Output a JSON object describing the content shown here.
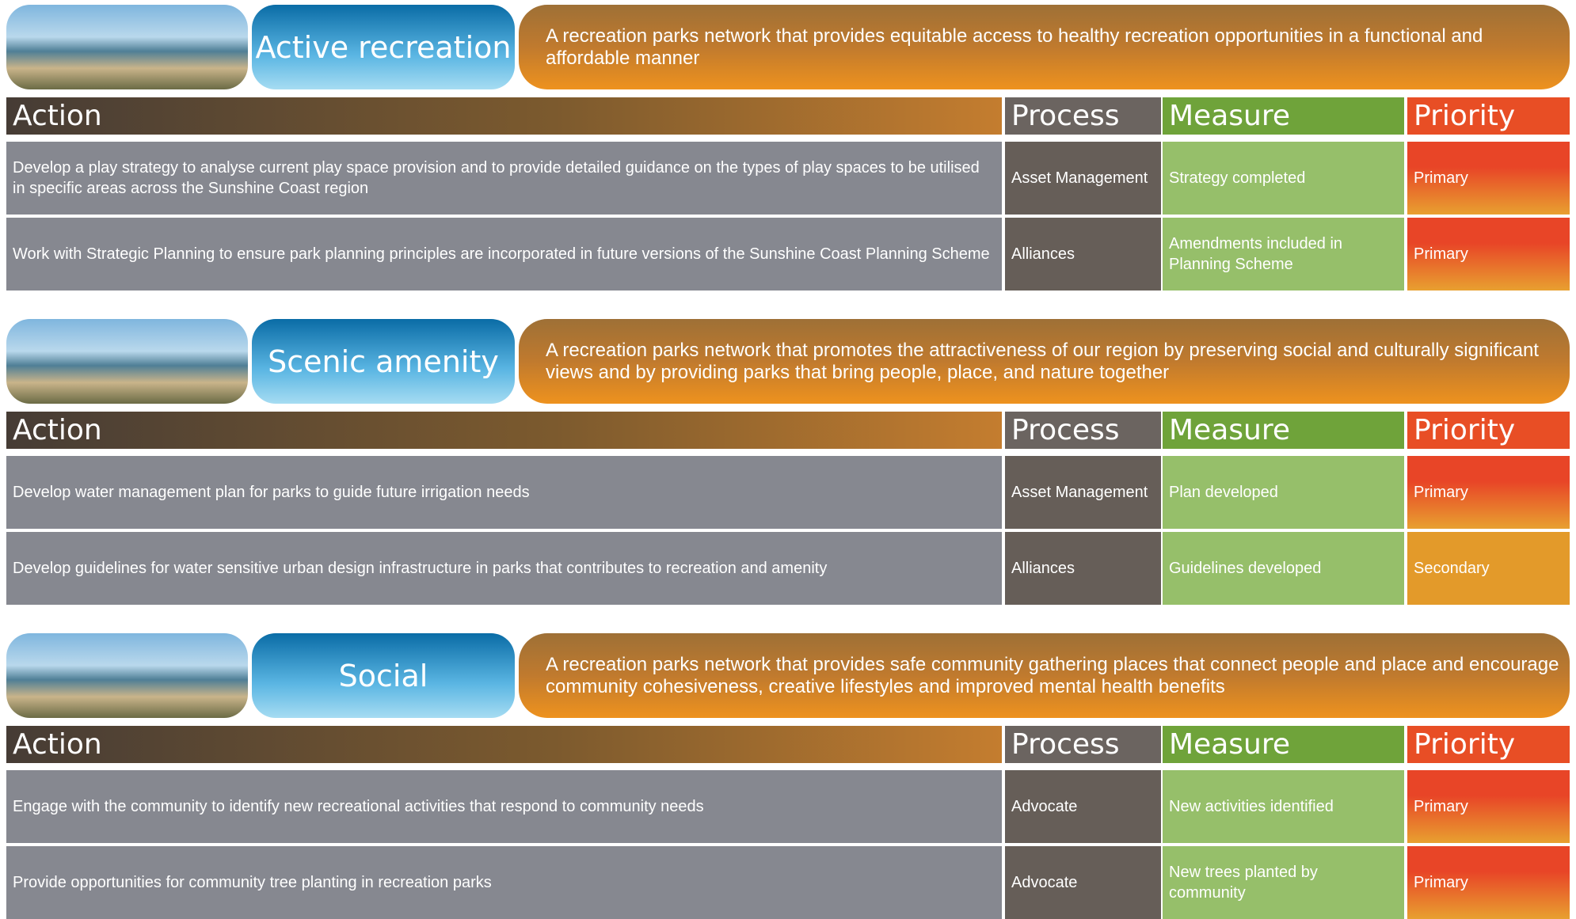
{
  "sections": [
    {
      "title": "Active recreation",
      "description": "A recreation parks network that provides equitable access to healthy recreation opportunities in a functional and affordable manner",
      "headers": [
        "Action",
        "Process",
        "Measure",
        "Priority"
      ],
      "rows": [
        [
          "Develop a play strategy to analyse current play space provision and to provide detailed guidance on the types of play spaces to be utilised in specific areas across the Sunshine Coast region",
          "Asset Management",
          "Strategy completed",
          "Primary"
        ],
        [
          "Work with Strategic Planning to ensure park planning principles are incorporated in future versions of the Sunshine Coast Planning Scheme",
          "Alliances",
          "Amendments included in Planning Scheme",
          "Primary"
        ]
      ]
    },
    {
      "title": "Scenic amenity",
      "description": "A recreation parks network that promotes the attractiveness of our region by preserving social and culturally significant views and by providing parks that bring people, place, and nature together",
      "headers": [
        "Action",
        "Process",
        "Measure",
        "Priority"
      ],
      "rows": [
        [
          "Develop water management plan for parks to guide future irrigation needs",
          "Asset Management",
          "Plan developed",
          "Primary"
        ],
        [
          "Develop guidelines for water sensitive urban design infrastructure in parks that contributes to recreation and amenity",
          "Alliances",
          "Guidelines developed",
          "Secondary"
        ]
      ]
    },
    {
      "title": "Social",
      "description": "A recreation parks network that provides safe community gathering places that connect people and place and encourage community cohesiveness, creative lifestyles and improved mental health benefits",
      "headers": [
        "Action",
        "Process",
        "Measure",
        "Priority"
      ],
      "rows": [
        [
          "Engage with the community to identify new recreational activities that respond to community needs",
          "Advocate",
          "New activities identified",
          "Primary"
        ],
        [
          "Provide opportunities for community tree planting in recreation parks",
          "Advocate",
          "New trees planted by community",
          "Primary"
        ]
      ]
    }
  ]
}
